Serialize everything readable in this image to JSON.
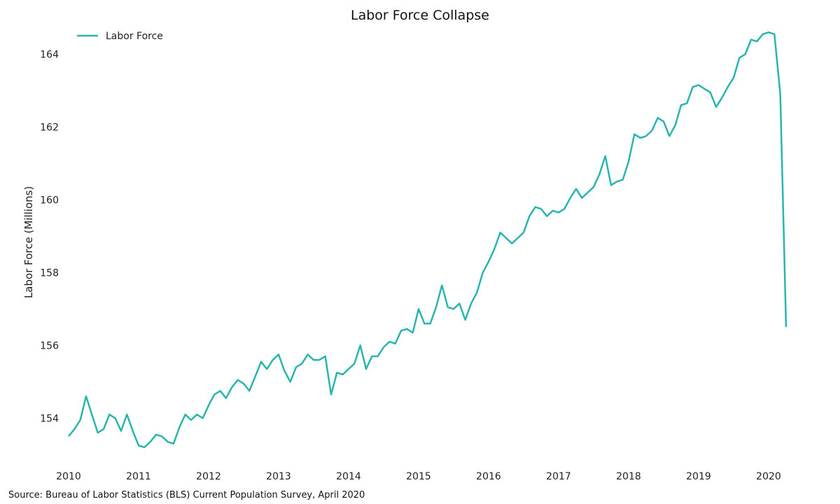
{
  "chart_data": {
    "type": "line",
    "title": "Labor Force Collapse",
    "ylabel": "Labor Force (Millions)",
    "xlabel": "",
    "xlim": [
      2010,
      2020.5
    ],
    "ylim": [
      152.7,
      164.95
    ],
    "yticks": [
      154,
      156,
      158,
      160,
      162,
      164
    ],
    "xticks": [
      2010,
      2011,
      2012,
      2013,
      2014,
      2015,
      2016,
      2017,
      2018,
      2019,
      2020
    ],
    "ytick_labels": [
      "154",
      "156",
      "158",
      "160",
      "162",
      "164"
    ],
    "xtick_labels": [
      "2010",
      "2011",
      "2012",
      "2013",
      "2014",
      "2015",
      "2016",
      "2017",
      "2018",
      "2019",
      "2020"
    ],
    "grid": false,
    "legend_position": "top-left",
    "series": [
      {
        "name": "Labor Force",
        "color": "#2ab5ac",
        "start": "2010-01",
        "frequency": "monthly",
        "values": [
          153.5,
          153.7,
          153.95,
          154.6,
          154.1,
          153.6,
          153.7,
          154.1,
          154.0,
          153.65,
          154.1,
          153.65,
          153.25,
          153.2,
          153.35,
          153.55,
          153.5,
          153.35,
          153.3,
          153.75,
          154.1,
          153.95,
          154.1,
          154.0,
          154.35,
          154.65,
          154.75,
          154.55,
          154.85,
          155.05,
          154.95,
          154.75,
          155.15,
          155.55,
          155.35,
          155.6,
          155.75,
          155.3,
          155.0,
          155.4,
          155.5,
          155.75,
          155.6,
          155.6,
          155.7,
          154.65,
          155.25,
          155.2,
          155.35,
          155.5,
          156.0,
          155.35,
          155.7,
          155.7,
          155.95,
          156.1,
          156.05,
          156.4,
          156.45,
          156.35,
          157.0,
          156.6,
          156.6,
          157.05,
          157.65,
          157.05,
          157.0,
          157.15,
          156.7,
          157.15,
          157.45,
          158.0,
          158.3,
          158.65,
          159.1,
          158.95,
          158.8,
          158.95,
          159.1,
          159.55,
          159.8,
          159.75,
          159.55,
          159.7,
          159.65,
          159.75,
          160.05,
          160.3,
          160.05,
          160.2,
          160.35,
          160.7,
          161.2,
          160.4,
          160.5,
          160.55,
          161.05,
          161.8,
          161.7,
          161.75,
          161.9,
          162.25,
          162.15,
          161.75,
          162.05,
          162.6,
          162.65,
          163.1,
          163.15,
          163.05,
          162.95,
          162.55,
          162.8,
          163.1,
          163.35,
          163.9,
          164.0,
          164.4,
          164.35,
          164.55,
          164.6,
          164.55,
          162.9,
          156.5
        ]
      }
    ]
  },
  "source_note": "Source: Bureau of Labor Statistics (BLS) Current Population Survey, April 2020"
}
